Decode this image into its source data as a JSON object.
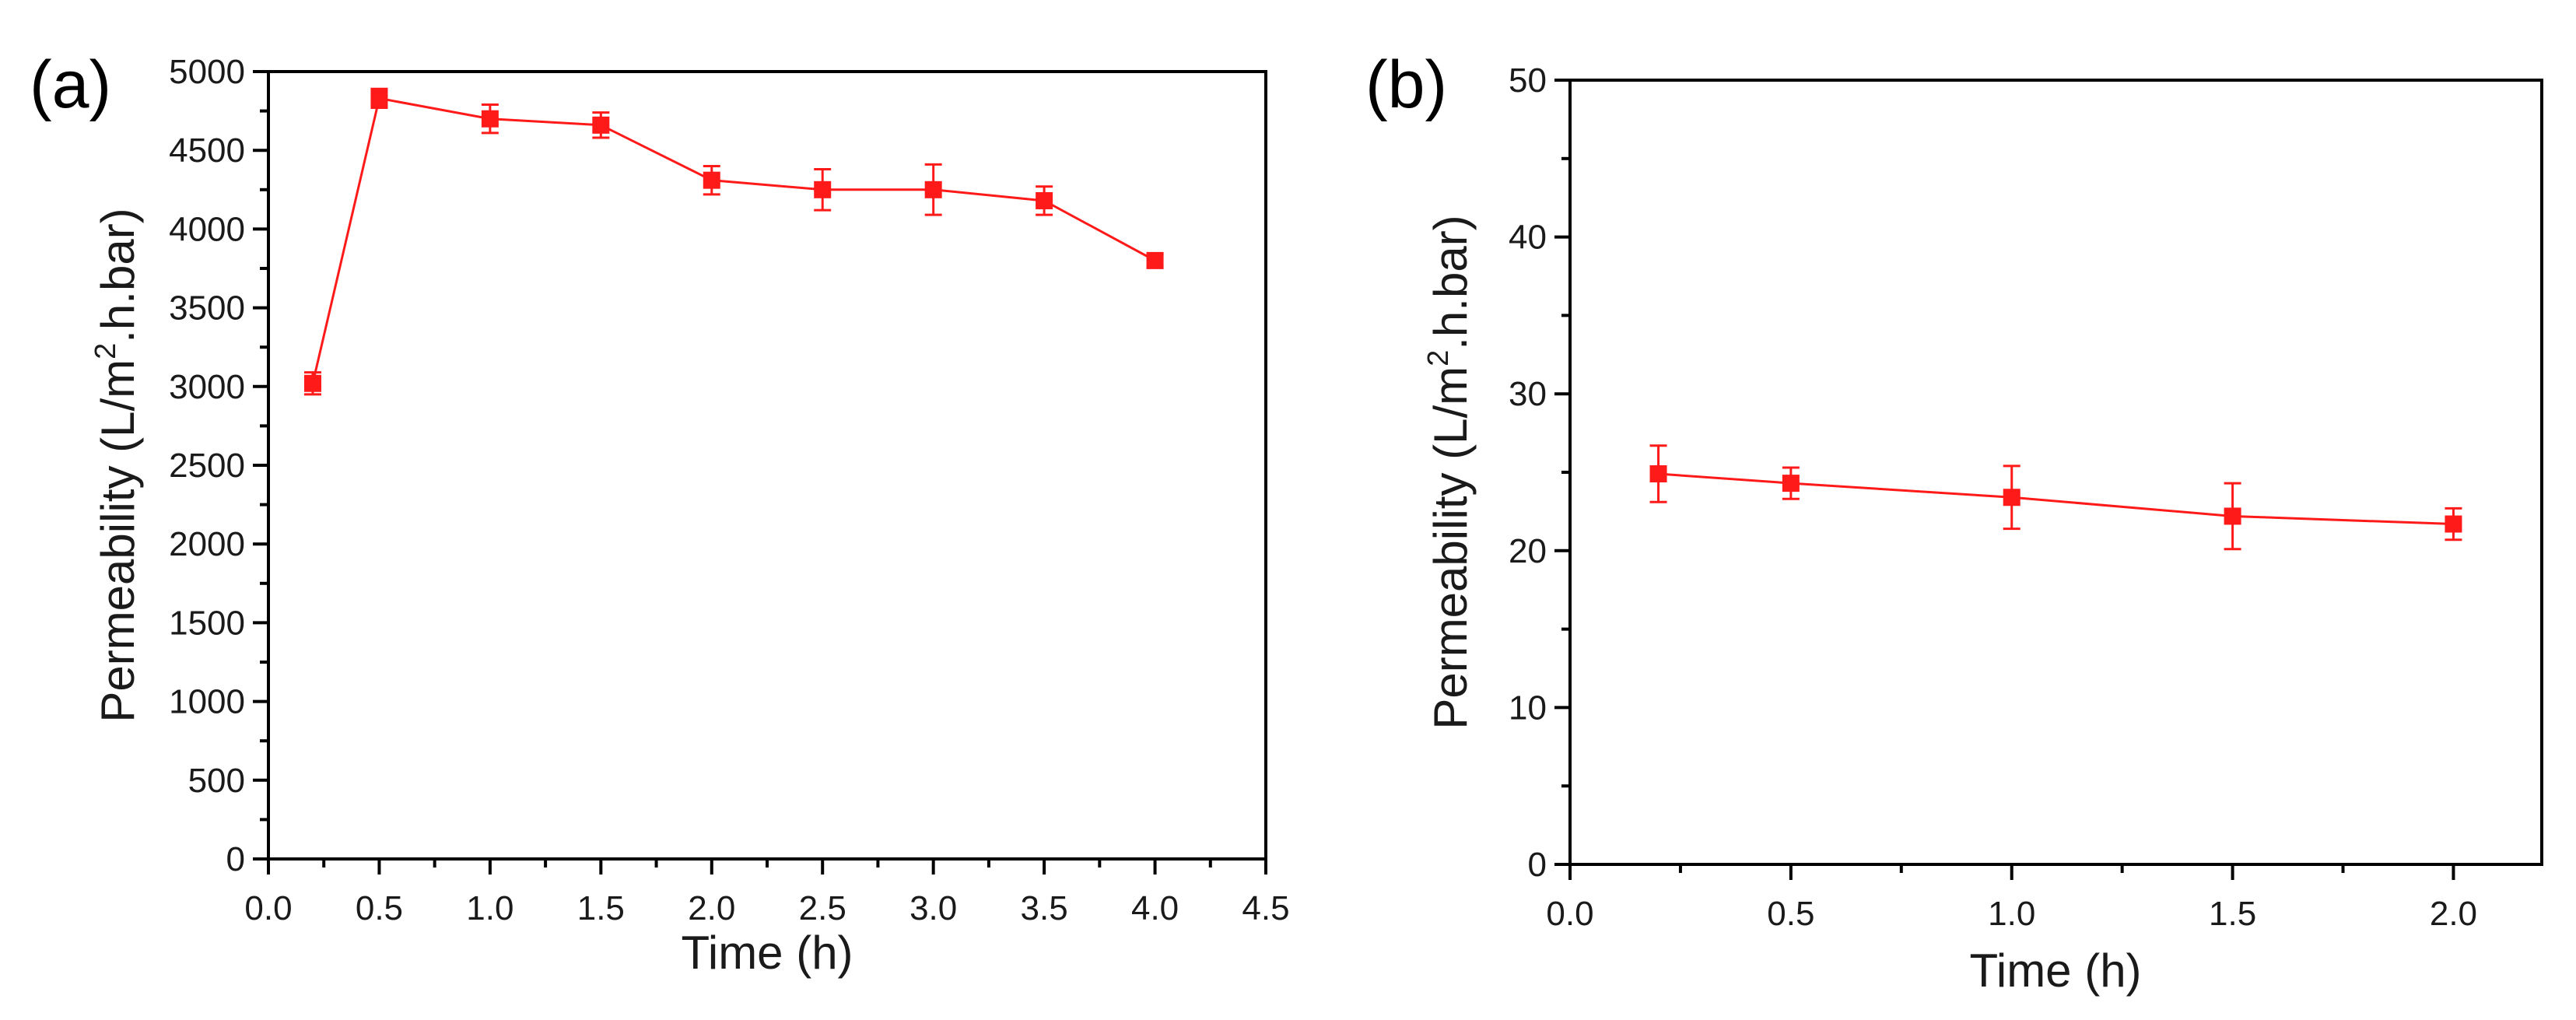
{
  "colors": {
    "series": "#ff1a1a",
    "axis": "#000000"
  },
  "chart_data": [
    {
      "type": "line",
      "panel_label": "(a)",
      "title": "",
      "xlabel": "Time (h)",
      "ylabel_main": "Permeability (L/m",
      "ylabel_sup": "2",
      "ylabel_tail": ".h.bar)",
      "xlim": [
        0.0,
        4.5
      ],
      "ylim": [
        0,
        5000
      ],
      "xticks": [
        "0.0",
        "0.5",
        "1.0",
        "1.5",
        "2.0",
        "2.5",
        "3.0",
        "3.5",
        "4.0",
        "4.5"
      ],
      "yticks": [
        "0",
        "500",
        "1000",
        "1500",
        "2000",
        "2500",
        "3000",
        "3500",
        "4000",
        "4500",
        "5000"
      ],
      "x": [
        0.2,
        0.5,
        1.0,
        1.5,
        2.0,
        2.5,
        3.0,
        3.5,
        4.0
      ],
      "y": [
        3020,
        4830,
        4700,
        4660,
        4310,
        4250,
        4250,
        4180,
        3800
      ],
      "yerr": [
        70,
        60,
        90,
        80,
        90,
        130,
        160,
        90,
        40
      ],
      "marker": "square"
    },
    {
      "type": "line",
      "panel_label": "(b)",
      "title": "",
      "xlabel": "Time (h)",
      "ylabel_main": "Permeability (L/m",
      "ylabel_sup": "2",
      "ylabel_tail": ".h.bar)",
      "xlim": [
        0.0,
        2.2
      ],
      "ylim": [
        0,
        50
      ],
      "xticks": [
        "0.0",
        "0.5",
        "1.0",
        "1.5",
        "2.0"
      ],
      "yticks": [
        "0",
        "10",
        "20",
        "30",
        "40",
        "50"
      ],
      "x": [
        0.2,
        0.5,
        1.0,
        1.5,
        2.0
      ],
      "y": [
        24.9,
        24.3,
        23.4,
        22.2,
        21.7
      ],
      "yerr": [
        1.8,
        1.0,
        2.0,
        2.1,
        1.0
      ],
      "marker": "square"
    }
  ]
}
